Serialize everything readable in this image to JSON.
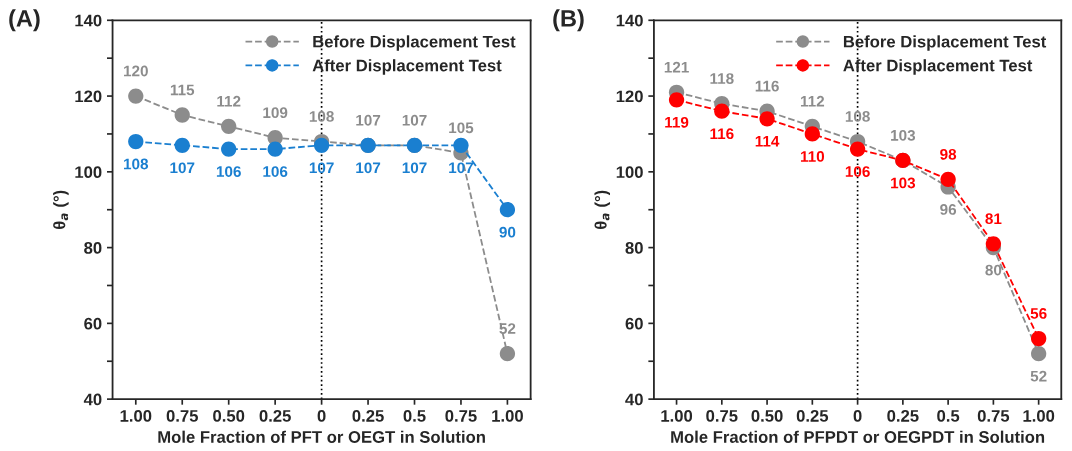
{
  "chart_data": [
    {
      "type": "line",
      "title": "(A)",
      "xlabel": "Mole Fraction of PFT or OEGT in Solution",
      "ylabel": "θ$_{a}$ (°)",
      "categories": [
        "1.00",
        "0.75",
        "0.50",
        "0.25",
        "0",
        "0.25",
        "0.5",
        "0.75",
        "1.00"
      ],
      "series": [
        {
          "name": "Before Displacement Test",
          "color": "#8c8c8c",
          "values": [
            120,
            115,
            112,
            109,
            108,
            107,
            107,
            105,
            52
          ]
        },
        {
          "name": "After Displacement Test",
          "color": "#1a7fd0",
          "values": [
            108,
            107,
            106,
            106,
            107,
            107,
            107,
            107,
            90
          ]
        }
      ],
      "ylim": [
        40,
        140
      ],
      "yticks": [
        40,
        {
          "value": 50,
          "label": null
        },
        60,
        {
          "value": 70,
          "label": null
        },
        80,
        {
          "value": 90,
          "label": null
        },
        100,
        {
          "value": 110,
          "label": null
        },
        120,
        {
          "value": 130,
          "label": null
        },
        140
      ],
      "ref_lines": [
        {
          "axis": "x",
          "value": "0",
          "color": "#000000",
          "line_style": "dotted"
        }
      ],
      "data_labels": true,
      "legend": "top right",
      "marker": "circle",
      "line_style": "dashed",
      "grid": false
    },
    {
      "type": "line",
      "title": "(B)",
      "xlabel": "Mole Fraction of PFPDT or OEGPDT in Solution",
      "ylabel": "θ$_{a}$ (°)",
      "categories": [
        "1.00",
        "0.75",
        "0.50",
        "0.25",
        "0",
        "0.25",
        "0.5",
        "0.75",
        "1.00"
      ],
      "series": [
        {
          "name": "Before Displacement Test",
          "color": "#8c8c8c",
          "values": [
            121,
            118,
            116,
            112,
            108,
            103,
            96,
            80,
            52
          ]
        },
        {
          "name": "After Displacement Test",
          "color": "#ff0000",
          "values": [
            119,
            116,
            114,
            110,
            106,
            103,
            98,
            81,
            56
          ]
        }
      ],
      "ylim": [
        40,
        140
      ],
      "yticks": [
        40,
        {
          "value": 50,
          "label": null
        },
        60,
        {
          "value": 70,
          "label": null
        },
        80,
        {
          "value": 90,
          "label": null
        },
        100,
        {
          "value": 110,
          "label": null
        },
        120,
        {
          "value": 130,
          "label": null
        },
        140
      ],
      "ref_lines": [
        {
          "axis": "x",
          "value": "0",
          "color": "#000000",
          "line_style": "dotted"
        }
      ],
      "data_labels": true,
      "legend": "top right",
      "marker": "circle",
      "line_style": "dashed",
      "grid": false
    }
  ]
}
